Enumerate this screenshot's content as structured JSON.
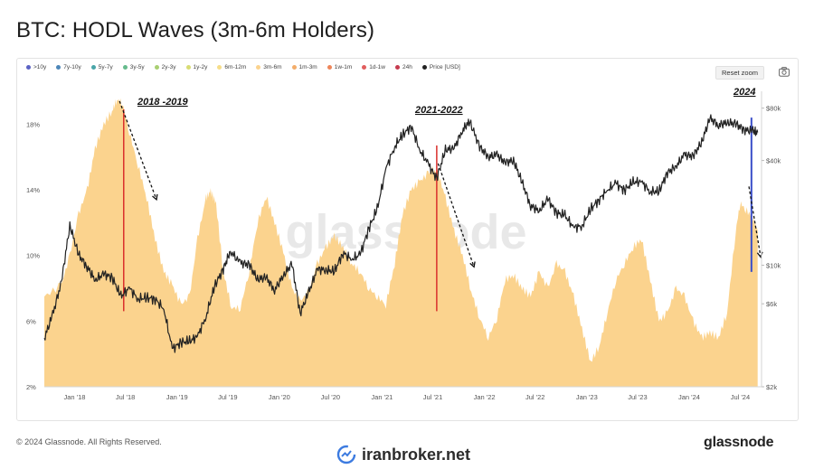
{
  "title": "BTC: HODL Waves (3m-6m Holders)",
  "legend": [
    {
      "label": ">10y",
      "color": "#5b63c4"
    },
    {
      "label": "7y-10y",
      "color": "#4d86b8"
    },
    {
      "label": "5y-7y",
      "color": "#49a5a8"
    },
    {
      "label": "3y-5y",
      "color": "#66bb8c"
    },
    {
      "label": "2y-3y",
      "color": "#a9cf72"
    },
    {
      "label": "1y-2y",
      "color": "#d8dc73"
    },
    {
      "label": "6m-12m",
      "color": "#f6dd88"
    },
    {
      "label": "3m-6m",
      "color": "#fbd38e"
    },
    {
      "label": "1m-3m",
      "color": "#f3ad6a"
    },
    {
      "label": "1w-1m",
      "color": "#ee8559"
    },
    {
      "label": "1d-1w",
      "color": "#e15e5e"
    },
    {
      "label": "24h",
      "color": "#c63b4f"
    },
    {
      "label": "Price [USD]",
      "color": "#222222"
    }
  ],
  "toolbar": {
    "reset_zoom": "Reset zoom",
    "camera_icon": "camera-icon"
  },
  "watermark": "glassnode",
  "annotations": {
    "a2018": "2018 -2019",
    "a2021": "2021-2022",
    "a2024": "2024"
  },
  "footer": {
    "copyright": "© 2024 Glassnode. All Rights Reserved.",
    "brand": "glassnode",
    "broker": "iranbroker.net",
    "broker_icon": "broker-logo-icon"
  },
  "chart_data": {
    "type": "area",
    "x_ticks": [
      "Jan '18",
      "Jul '18",
      "Jan '19",
      "Jul '19",
      "Jan '20",
      "Jul '20",
      "Jan '21",
      "Jul '21",
      "Jan '22",
      "Jul '22",
      "Jan '23",
      "Jul '23",
      "Jan '24",
      "Jul '24"
    ],
    "y_left_ticks": [
      "2%",
      "6%",
      "10%",
      "14%",
      "18%"
    ],
    "y_right_ticks": [
      "$2k",
      "$6k",
      "$10k",
      "$40k",
      "$80k"
    ],
    "ylim_left": [
      2,
      20
    ],
    "price_scale": "log",
    "ylim_right_usd": [
      2000,
      100000
    ],
    "x_range": [
      "2017-09-15",
      "2024-09-15"
    ],
    "series": [
      {
        "name": "3m-6m",
        "color": "#fbd38e",
        "points": [
          [
            "2017-09-15",
            7.5
          ],
          [
            "2017-11-15",
            8.2
          ],
          [
            "2017-12-15",
            10.0
          ],
          [
            "2018-01-15",
            12.5
          ],
          [
            "2018-02-15",
            14.0
          ],
          [
            "2018-03-15",
            16.5
          ],
          [
            "2018-04-15",
            18.0
          ],
          [
            "2018-05-15",
            18.8
          ],
          [
            "2018-06-01",
            19.5
          ],
          [
            "2018-06-20",
            19.3
          ],
          [
            "2018-07-15",
            17.5
          ],
          [
            "2018-08-15",
            15.5
          ],
          [
            "2018-09-15",
            13.5
          ],
          [
            "2018-10-15",
            11.0
          ],
          [
            "2018-11-15",
            9.0
          ],
          [
            "2018-12-15",
            8.2
          ],
          [
            "2019-01-15",
            7.0
          ],
          [
            "2019-02-15",
            7.5
          ],
          [
            "2019-03-15",
            11.0
          ],
          [
            "2019-04-15",
            13.5
          ],
          [
            "2019-05-01",
            13.9
          ],
          [
            "2019-05-20",
            13.2
          ],
          [
            "2019-06-15",
            9.0
          ],
          [
            "2019-07-15",
            6.8
          ],
          [
            "2019-08-15",
            6.8
          ],
          [
            "2019-09-15",
            9.0
          ],
          [
            "2019-10-15",
            12.0
          ],
          [
            "2019-11-15",
            13.6
          ],
          [
            "2019-12-15",
            12.0
          ],
          [
            "2020-01-15",
            10.2
          ],
          [
            "2020-02-15",
            8.0
          ],
          [
            "2020-03-15",
            7.2
          ],
          [
            "2020-04-15",
            7.8
          ],
          [
            "2020-05-15",
            9.5
          ],
          [
            "2020-06-15",
            10.5
          ],
          [
            "2020-07-15",
            11.2
          ],
          [
            "2020-08-15",
            10.5
          ],
          [
            "2020-09-15",
            9.5
          ],
          [
            "2020-10-15",
            9.0
          ],
          [
            "2020-11-15",
            8.0
          ],
          [
            "2020-12-15",
            7.5
          ],
          [
            "2021-01-15",
            7.0
          ],
          [
            "2021-02-15",
            9.5
          ],
          [
            "2021-03-15",
            12.5
          ],
          [
            "2021-04-15",
            14.0
          ],
          [
            "2021-05-15",
            14.5
          ],
          [
            "2021-06-15",
            15.0
          ],
          [
            "2021-07-01",
            15.2
          ],
          [
            "2021-07-20",
            15.0
          ],
          [
            "2021-08-15",
            13.5
          ],
          [
            "2021-09-15",
            11.5
          ],
          [
            "2021-10-15",
            10.0
          ],
          [
            "2021-11-15",
            7.8
          ],
          [
            "2021-12-15",
            6.2
          ],
          [
            "2022-01-15",
            5.0
          ],
          [
            "2022-02-15",
            6.2
          ],
          [
            "2022-03-15",
            8.5
          ],
          [
            "2022-04-15",
            8.8
          ],
          [
            "2022-05-15",
            8.0
          ],
          [
            "2022-06-15",
            7.5
          ],
          [
            "2022-07-15",
            9.0
          ],
          [
            "2022-08-15",
            8.0
          ],
          [
            "2022-09-15",
            9.5
          ],
          [
            "2022-10-15",
            9.0
          ],
          [
            "2022-11-15",
            7.5
          ],
          [
            "2022-12-15",
            5.5
          ],
          [
            "2023-01-15",
            3.5
          ],
          [
            "2023-02-15",
            4.5
          ],
          [
            "2023-03-15",
            6.5
          ],
          [
            "2023-04-15",
            8.5
          ],
          [
            "2023-05-15",
            9.5
          ],
          [
            "2023-06-15",
            10.5
          ],
          [
            "2023-07-15",
            11.0
          ],
          [
            "2023-08-15",
            8.5
          ],
          [
            "2023-09-15",
            6.0
          ],
          [
            "2023-10-15",
            6.5
          ],
          [
            "2023-11-15",
            8.0
          ],
          [
            "2023-12-15",
            7.5
          ],
          [
            "2024-01-15",
            6.0
          ],
          [
            "2024-02-15",
            5.0
          ],
          [
            "2024-03-15",
            5.3
          ],
          [
            "2024-04-15",
            5.0
          ],
          [
            "2024-05-15",
            6.5
          ],
          [
            "2024-06-15",
            11.5
          ],
          [
            "2024-07-01",
            13.2
          ],
          [
            "2024-07-20",
            12.8
          ],
          [
            "2024-08-15",
            12.3
          ],
          [
            "2024-09-01",
            11.5
          ]
        ]
      },
      {
        "name": "Price [USD]",
        "color": "#222222",
        "scale": "log",
        "points": [
          [
            "2017-09-15",
            3800
          ],
          [
            "2017-10-15",
            5200
          ],
          [
            "2017-11-15",
            8000
          ],
          [
            "2017-12-15",
            17000
          ],
          [
            "2018-01-15",
            11500
          ],
          [
            "2018-02-15",
            9800
          ],
          [
            "2018-03-15",
            8200
          ],
          [
            "2018-04-15",
            8900
          ],
          [
            "2018-05-15",
            8500
          ],
          [
            "2018-06-15",
            6600
          ],
          [
            "2018-07-15",
            7400
          ],
          [
            "2018-08-15",
            6400
          ],
          [
            "2018-09-15",
            6500
          ],
          [
            "2018-10-15",
            6400
          ],
          [
            "2018-11-15",
            5600
          ],
          [
            "2018-12-15",
            3300
          ],
          [
            "2019-01-15",
            3600
          ],
          [
            "2019-02-15",
            3650
          ],
          [
            "2019-03-15",
            3900
          ],
          [
            "2019-04-15",
            5100
          ],
          [
            "2019-05-15",
            7600
          ],
          [
            "2019-06-15",
            9500
          ],
          [
            "2019-07-10",
            12000
          ],
          [
            "2019-08-15",
            10300
          ],
          [
            "2019-09-15",
            10100
          ],
          [
            "2019-10-15",
            8300
          ],
          [
            "2019-11-15",
            8500
          ],
          [
            "2019-12-15",
            7200
          ],
          [
            "2020-01-15",
            8700
          ],
          [
            "2020-02-15",
            10200
          ],
          [
            "2020-03-15",
            5300
          ],
          [
            "2020-04-15",
            7000
          ],
          [
            "2020-05-15",
            9500
          ],
          [
            "2020-06-15",
            9400
          ],
          [
            "2020-07-15",
            9200
          ],
          [
            "2020-08-15",
            11800
          ],
          [
            "2020-09-15",
            10800
          ],
          [
            "2020-10-15",
            11500
          ],
          [
            "2020-11-15",
            16300
          ],
          [
            "2020-12-15",
            21000
          ],
          [
            "2021-01-15",
            36000
          ],
          [
            "2021-02-15",
            48000
          ],
          [
            "2021-03-15",
            56000
          ],
          [
            "2021-04-15",
            63000
          ],
          [
            "2021-05-15",
            46000
          ],
          [
            "2021-06-15",
            38000
          ],
          [
            "2021-07-15",
            31500
          ],
          [
            "2021-08-15",
            46000
          ],
          [
            "2021-09-15",
            47000
          ],
          [
            "2021-10-15",
            60000
          ],
          [
            "2021-11-10",
            67000
          ],
          [
            "2021-12-15",
            48000
          ],
          [
            "2022-01-15",
            42000
          ],
          [
            "2022-02-15",
            43000
          ],
          [
            "2022-03-15",
            39000
          ],
          [
            "2022-04-15",
            40000
          ],
          [
            "2022-05-15",
            30000
          ],
          [
            "2022-06-15",
            22000
          ],
          [
            "2022-07-15",
            20500
          ],
          [
            "2022-08-15",
            24000
          ],
          [
            "2022-09-15",
            20000
          ],
          [
            "2022-10-15",
            19300
          ],
          [
            "2022-11-15",
            16500
          ],
          [
            "2022-12-15",
            16800
          ],
          [
            "2023-01-15",
            21000
          ],
          [
            "2023-02-15",
            24000
          ],
          [
            "2023-03-15",
            27000
          ],
          [
            "2023-04-15",
            29500
          ],
          [
            "2023-05-15",
            27000
          ],
          [
            "2023-06-15",
            30000
          ],
          [
            "2023-07-15",
            30200
          ],
          [
            "2023-08-15",
            26500
          ],
          [
            "2023-09-15",
            26500
          ],
          [
            "2023-10-15",
            34000
          ],
          [
            "2023-11-15",
            37000
          ],
          [
            "2023-12-15",
            43000
          ],
          [
            "2024-01-15",
            42500
          ],
          [
            "2024-02-15",
            51000
          ],
          [
            "2024-03-15",
            70000
          ],
          [
            "2024-04-15",
            64000
          ],
          [
            "2024-05-15",
            66000
          ],
          [
            "2024-06-15",
            65000
          ],
          [
            "2024-07-15",
            60000
          ],
          [
            "2024-08-15",
            59000
          ],
          [
            "2024-09-01",
            58000
          ]
        ]
      }
    ],
    "vertical_markers": [
      {
        "date": "2018-06-25",
        "from_pct": 6.6,
        "to_pct": 18.9,
        "color": "#d9302c"
      },
      {
        "date": "2021-07-15",
        "from_pct": 6.6,
        "to_pct": 16.7,
        "color": "#d9302c"
      },
      {
        "date": "2024-08-10",
        "from_pct": 9.0,
        "to_pct": 18.4,
        "color": "#3b4fc9"
      }
    ]
  }
}
